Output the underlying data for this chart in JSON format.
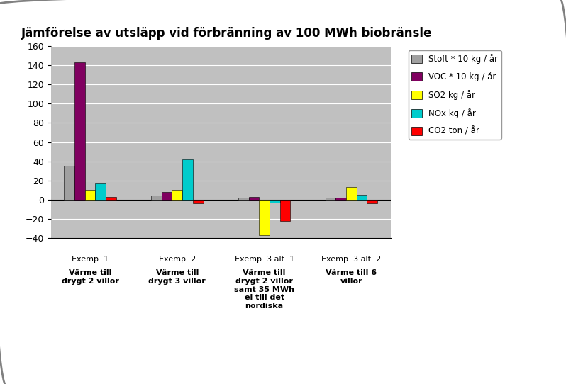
{
  "title": "Jämförelse av utsläpp vid förbränning av 100 MWh biobränsle",
  "cat_top": [
    "Exemp. 1",
    "Exemp. 2",
    "Exemp. 3 alt. 1",
    "Exemp. 3 alt. 2"
  ],
  "cat_bold": [
    "Värme till\ndrygt 2 villor",
    "Värme till\ndrygt 3 villor",
    "Värme till\ndrygt 2 villor\nsamt 35 MWh\nel till det\nnordiska",
    "Värme till 6\nvillor"
  ],
  "series": [
    {
      "name": "Stoft * 10 kg / år",
      "color": "#A0A0A0",
      "values": [
        35,
        4,
        2,
        2
      ]
    },
    {
      "name": "VOC * 10 kg / år",
      "color": "#800060",
      "values": [
        143,
        8,
        3,
        2
      ]
    },
    {
      "name": "SO2 kg / år",
      "color": "#FFFF00",
      "values": [
        10,
        10,
        -37,
        13
      ]
    },
    {
      "name": "NOx kg / år",
      "color": "#00CCCC",
      "values": [
        17,
        42,
        -3,
        5
      ]
    },
    {
      "name": "CO2 ton / år",
      "color": "#FF0000",
      "values": [
        3,
        -4,
        -22,
        -4
      ]
    }
  ],
  "ylim": [
    -40,
    160
  ],
  "yticks": [
    -40,
    -20,
    0,
    20,
    40,
    60,
    80,
    100,
    120,
    140,
    160
  ],
  "plot_bg_color": "#C0C0C0",
  "outer_bg_color": "#FFFFFF",
  "legend_bg": "#FFFFFF",
  "title_fontsize": 12,
  "bar_width": 0.12,
  "grid_color": "#FFFFFF"
}
